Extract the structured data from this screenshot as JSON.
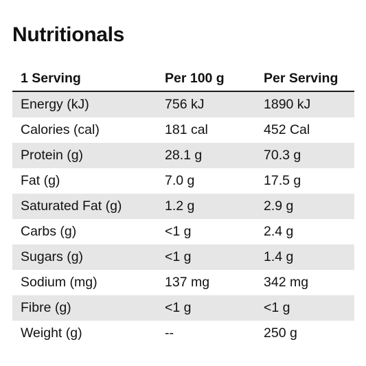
{
  "title": "Nutritionals",
  "table": {
    "headers": [
      "1 Serving",
      "Per 100 g",
      "Per Serving"
    ],
    "rows": [
      [
        "Energy (kJ)",
        "756 kJ",
        "1890 kJ"
      ],
      [
        "Calories (cal)",
        "181 cal",
        "452 Cal"
      ],
      [
        "Protein (g)",
        "28.1 g",
        "70.3 g"
      ],
      [
        "Fat (g)",
        "7.0 g",
        "17.5 g"
      ],
      [
        "Saturated Fat (g)",
        "1.2 g",
        "2.9 g"
      ],
      [
        "Carbs (g)",
        "<1 g",
        "2.4 g"
      ],
      [
        "Sugars (g)",
        "<1 g",
        "1.4 g"
      ],
      [
        "Sodium (mg)",
        "137 mg",
        "342 mg"
      ],
      [
        "Fibre (g)",
        "<1 g",
        "<1 g"
      ],
      [
        "Weight (g)",
        "--",
        "250 g"
      ]
    ]
  },
  "colors": {
    "shaded_row": "#e6e6e6",
    "text": "#111111",
    "header_rule": "#1a1a1a"
  }
}
